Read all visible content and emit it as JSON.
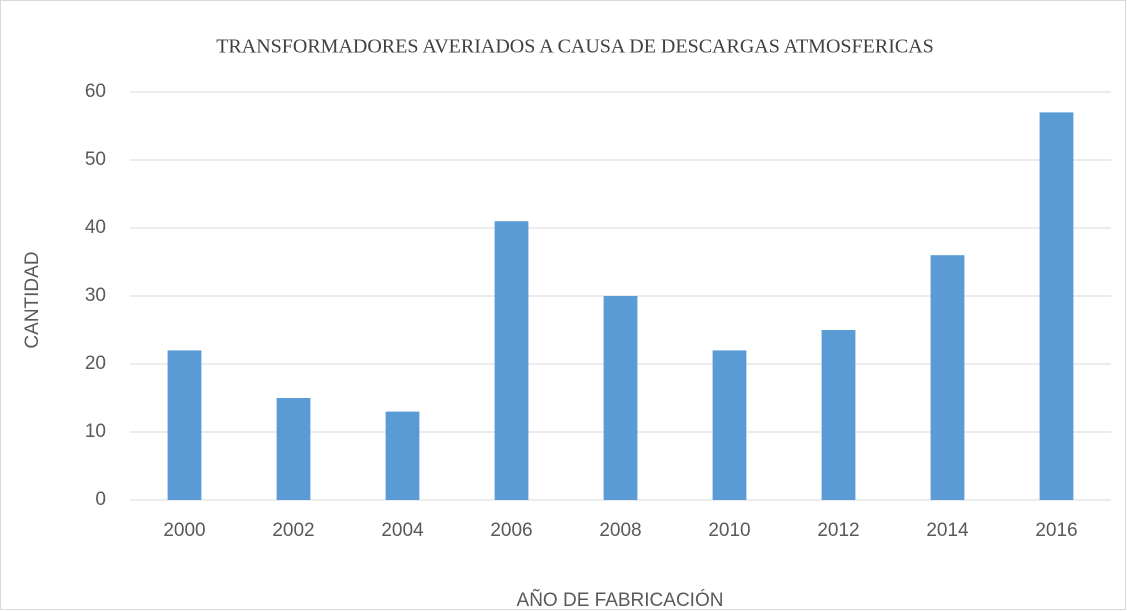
{
  "chart_data": {
    "type": "bar",
    "title": "TRANSFORMADORES AVERIADOS A CAUSA DE DESCARGAS ATMOSFERICAS",
    "x_label": "AÑO DE FABRICACIÓN",
    "y_label": "CANTIDAD",
    "categories": [
      "2000",
      "2002",
      "2004",
      "2006",
      "2008",
      "2010",
      "2012",
      "2014",
      "2016"
    ],
    "values": [
      22,
      15,
      13,
      41,
      30,
      22,
      25,
      36,
      57
    ],
    "color": "#5b9bd5",
    "ylim": [
      0,
      60
    ],
    "yticks": [
      0,
      10,
      20,
      30,
      40,
      50,
      60
    ],
    "grid": true
  }
}
